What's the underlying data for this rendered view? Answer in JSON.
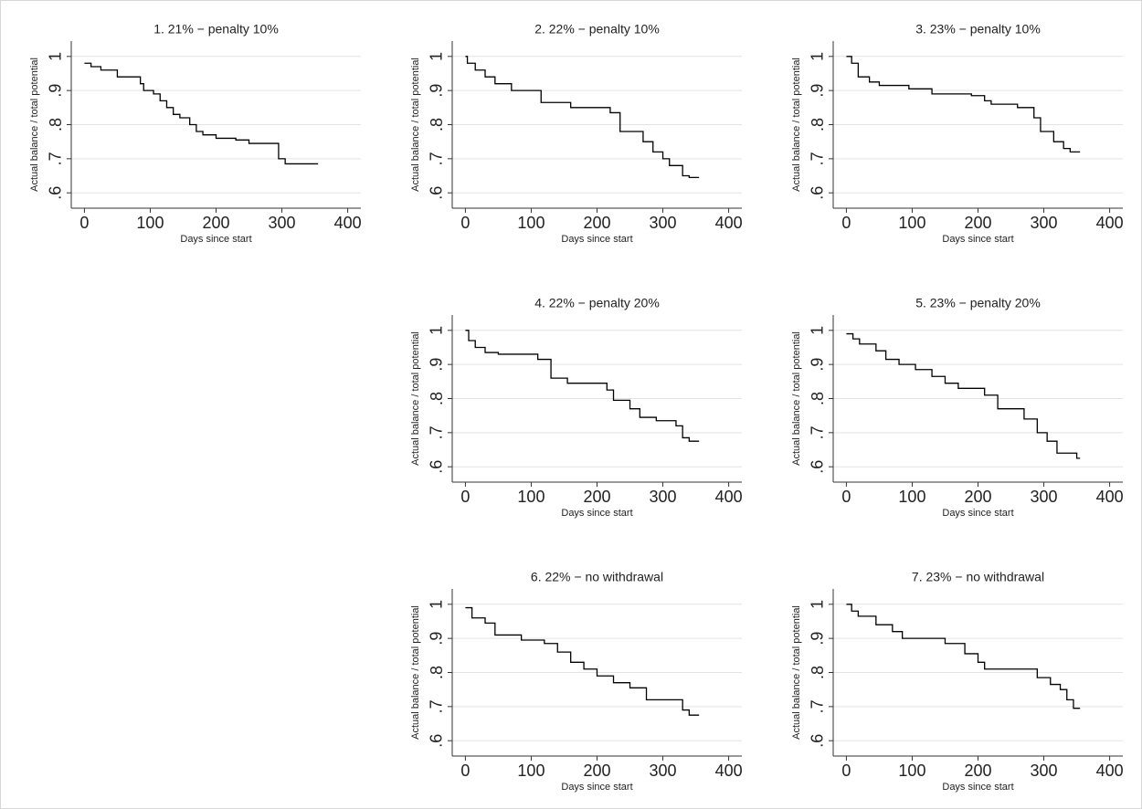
{
  "chart_data": [
    {
      "type": "line",
      "title": "1. 21% − penalty 10%",
      "x_label": "Days since start",
      "y_label": "Actual balance / total potential",
      "color": "#000000",
      "x": [
        0,
        10,
        10,
        25,
        25,
        50,
        50,
        85,
        85,
        90,
        90,
        105,
        105,
        115,
        115,
        125,
        125,
        135,
        135,
        145,
        145,
        160,
        160,
        170,
        170,
        180,
        180,
        200,
        200,
        230,
        230,
        250,
        250,
        295,
        295,
        305,
        305,
        355
      ],
      "values": [
        0.98,
        0.98,
        0.97,
        0.97,
        0.96,
        0.96,
        0.94,
        0.94,
        0.92,
        0.92,
        0.9,
        0.9,
        0.89,
        0.89,
        0.87,
        0.87,
        0.85,
        0.85,
        0.83,
        0.83,
        0.82,
        0.82,
        0.8,
        0.8,
        0.78,
        0.78,
        0.77,
        0.77,
        0.76,
        0.76,
        0.755,
        0.755,
        0.745,
        0.745,
        0.7,
        0.7,
        0.685,
        0.685
      ],
      "xlim": [
        -20,
        420
      ],
      "ylim": [
        0.555,
        1.045
      ],
      "xticks": [
        0,
        100,
        200,
        300,
        400
      ],
      "yticks": [
        {
          "value": 0.6,
          "label": ".6"
        },
        {
          "value": 0.7,
          "label": ".7"
        },
        {
          "value": 0.8,
          "label": ".8"
        },
        {
          "value": 0.9,
          "label": ".9"
        },
        1
      ],
      "grid": true
    },
    {
      "type": "line",
      "title": "2. 22% − penalty 10%",
      "x_label": "Days since start",
      "y_label": "Actual balance / total potential",
      "color": "#000000",
      "x": [
        0,
        3,
        3,
        15,
        15,
        30,
        30,
        45,
        45,
        70,
        70,
        115,
        115,
        160,
        160,
        220,
        220,
        235,
        235,
        270,
        270,
        285,
        285,
        300,
        300,
        310,
        310,
        330,
        330,
        340,
        340,
        355
      ],
      "values": [
        1,
        1,
        0.98,
        0.98,
        0.96,
        0.96,
        0.94,
        0.94,
        0.92,
        0.92,
        0.9,
        0.9,
        0.865,
        0.865,
        0.85,
        0.85,
        0.835,
        0.835,
        0.78,
        0.78,
        0.75,
        0.75,
        0.72,
        0.72,
        0.7,
        0.7,
        0.68,
        0.68,
        0.65,
        0.65,
        0.645,
        0.645
      ],
      "xlim": [
        -20,
        420
      ],
      "ylim": [
        0.555,
        1.045
      ],
      "xticks": [
        0,
        100,
        200,
        300,
        400
      ],
      "yticks": [
        {
          "value": 0.6,
          "label": ".6"
        },
        {
          "value": 0.7,
          "label": ".7"
        },
        {
          "value": 0.8,
          "label": ".8"
        },
        {
          "value": 0.9,
          "label": ".9"
        },
        1
      ],
      "grid": true
    },
    {
      "type": "line",
      "title": "3. 23% − penalty 10%",
      "x_label": "Days since start",
      "y_label": "Actual balance / total potential",
      "color": "#000000",
      "x": [
        0,
        8,
        8,
        18,
        18,
        35,
        35,
        50,
        50,
        95,
        95,
        130,
        130,
        190,
        190,
        210,
        210,
        220,
        220,
        260,
        260,
        285,
        285,
        295,
        295,
        315,
        315,
        330,
        330,
        340,
        340,
        355
      ],
      "values": [
        1,
        1,
        0.98,
        0.98,
        0.94,
        0.94,
        0.925,
        0.925,
        0.915,
        0.915,
        0.905,
        0.905,
        0.89,
        0.89,
        0.885,
        0.885,
        0.87,
        0.87,
        0.86,
        0.86,
        0.85,
        0.85,
        0.82,
        0.82,
        0.78,
        0.78,
        0.75,
        0.75,
        0.73,
        0.73,
        0.72,
        0.72
      ],
      "xlim": [
        -20,
        420
      ],
      "ylim": [
        0.555,
        1.045
      ],
      "xticks": [
        0,
        100,
        200,
        300,
        400
      ],
      "yticks": [
        {
          "value": 0.6,
          "label": ".6"
        },
        {
          "value": 0.7,
          "label": ".7"
        },
        {
          "value": 0.8,
          "label": ".8"
        },
        {
          "value": 0.9,
          "label": ".9"
        },
        1
      ],
      "grid": true
    },
    {
      "type": "line",
      "title": "4. 22% − penalty 20%",
      "x_label": "Days since start",
      "y_label": "Actual balance / total potential",
      "color": "#000000",
      "x": [
        0,
        5,
        5,
        15,
        15,
        30,
        30,
        50,
        50,
        110,
        110,
        130,
        130,
        155,
        155,
        215,
        215,
        225,
        225,
        250,
        250,
        265,
        265,
        290,
        290,
        320,
        320,
        330,
        330,
        340,
        340,
        355
      ],
      "values": [
        1,
        1,
        0.97,
        0.97,
        0.95,
        0.95,
        0.935,
        0.935,
        0.93,
        0.93,
        0.915,
        0.915,
        0.86,
        0.86,
        0.845,
        0.845,
        0.825,
        0.825,
        0.795,
        0.795,
        0.77,
        0.77,
        0.745,
        0.745,
        0.735,
        0.735,
        0.72,
        0.72,
        0.685,
        0.685,
        0.675,
        0.675
      ],
      "xlim": [
        -20,
        420
      ],
      "ylim": [
        0.555,
        1.045
      ],
      "xticks": [
        0,
        100,
        200,
        300,
        400
      ],
      "yticks": [
        {
          "value": 0.6,
          "label": ".6"
        },
        {
          "value": 0.7,
          "label": ".7"
        },
        {
          "value": 0.8,
          "label": ".8"
        },
        {
          "value": 0.9,
          "label": ".9"
        },
        1
      ],
      "grid": true
    },
    {
      "type": "line",
      "title": "5. 23% − penalty 20%",
      "x_label": "Days since start",
      "y_label": "Actual balance / total potential",
      "color": "#000000",
      "x": [
        0,
        10,
        10,
        20,
        20,
        45,
        45,
        60,
        60,
        80,
        80,
        105,
        105,
        130,
        130,
        150,
        150,
        170,
        170,
        210,
        210,
        230,
        230,
        270,
        270,
        290,
        290,
        305,
        305,
        320,
        320,
        350,
        350,
        355
      ],
      "values": [
        0.99,
        0.99,
        0.975,
        0.975,
        0.96,
        0.96,
        0.94,
        0.94,
        0.915,
        0.915,
        0.9,
        0.9,
        0.885,
        0.885,
        0.865,
        0.865,
        0.845,
        0.845,
        0.83,
        0.83,
        0.81,
        0.81,
        0.77,
        0.77,
        0.74,
        0.74,
        0.7,
        0.7,
        0.675,
        0.675,
        0.64,
        0.64,
        0.625,
        0.625
      ],
      "xlim": [
        -20,
        420
      ],
      "ylim": [
        0.555,
        1.045
      ],
      "xticks": [
        0,
        100,
        200,
        300,
        400
      ],
      "yticks": [
        {
          "value": 0.6,
          "label": ".6"
        },
        {
          "value": 0.7,
          "label": ".7"
        },
        {
          "value": 0.8,
          "label": ".8"
        },
        {
          "value": 0.9,
          "label": ".9"
        },
        1
      ],
      "grid": true
    },
    {
      "type": "line",
      "title": "6. 22% − no withdrawal",
      "x_label": "Days since start",
      "y_label": "Actual balance / total potential",
      "color": "#000000",
      "x": [
        0,
        10,
        10,
        30,
        30,
        45,
        45,
        85,
        85,
        120,
        120,
        140,
        140,
        160,
        160,
        180,
        180,
        200,
        200,
        225,
        225,
        250,
        250,
        275,
        275,
        330,
        330,
        340,
        340,
        355
      ],
      "values": [
        0.99,
        0.99,
        0.96,
        0.96,
        0.945,
        0.945,
        0.91,
        0.91,
        0.895,
        0.895,
        0.885,
        0.885,
        0.86,
        0.86,
        0.83,
        0.83,
        0.81,
        0.81,
        0.79,
        0.79,
        0.77,
        0.77,
        0.755,
        0.755,
        0.72,
        0.72,
        0.69,
        0.69,
        0.675,
        0.675
      ],
      "xlim": [
        -20,
        420
      ],
      "ylim": [
        0.555,
        1.045
      ],
      "xticks": [
        0,
        100,
        200,
        300,
        400
      ],
      "yticks": [
        {
          "value": 0.6,
          "label": ".6"
        },
        {
          "value": 0.7,
          "label": ".7"
        },
        {
          "value": 0.8,
          "label": ".8"
        },
        {
          "value": 0.9,
          "label": ".9"
        },
        1
      ],
      "grid": true
    },
    {
      "type": "line",
      "title": "7. 23% − no withdrawal",
      "x_label": "Days since start",
      "y_label": "Actual balance / total potential",
      "color": "#000000",
      "x": [
        0,
        8,
        8,
        18,
        18,
        45,
        45,
        70,
        70,
        85,
        85,
        150,
        150,
        180,
        180,
        200,
        200,
        210,
        210,
        290,
        290,
        310,
        310,
        325,
        325,
        335,
        335,
        345,
        345,
        355
      ],
      "values": [
        1,
        1,
        0.98,
        0.98,
        0.965,
        0.965,
        0.94,
        0.94,
        0.92,
        0.92,
        0.9,
        0.9,
        0.885,
        0.885,
        0.855,
        0.855,
        0.83,
        0.83,
        0.81,
        0.81,
        0.785,
        0.785,
        0.765,
        0.765,
        0.75,
        0.75,
        0.72,
        0.72,
        0.695,
        0.695
      ],
      "xlim": [
        -20,
        420
      ],
      "ylim": [
        0.555,
        1.045
      ],
      "xticks": [
        0,
        100,
        200,
        300,
        400
      ],
      "yticks": [
        {
          "value": 0.6,
          "label": ".6"
        },
        {
          "value": 0.7,
          "label": ".7"
        },
        {
          "value": 0.8,
          "label": ".8"
        },
        {
          "value": 0.9,
          "label": ".9"
        },
        1
      ],
      "grid": true
    }
  ]
}
